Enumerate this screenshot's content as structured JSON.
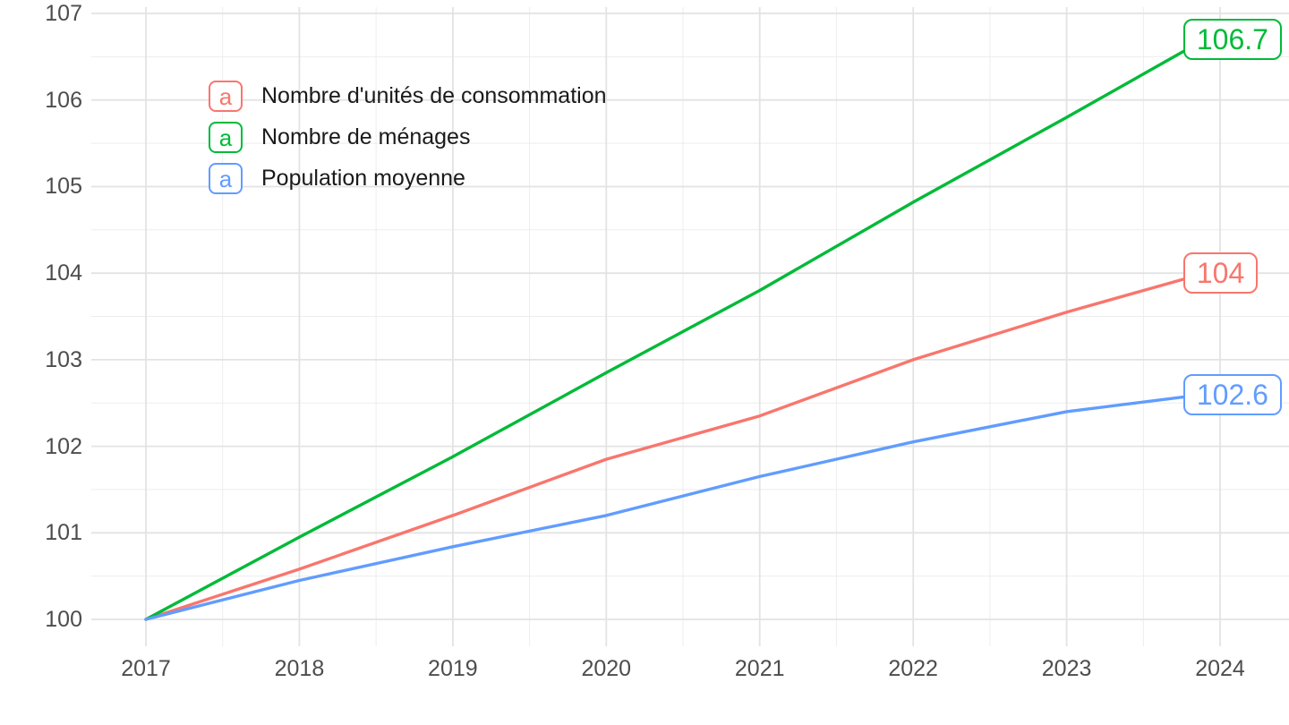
{
  "chart_data": {
    "type": "line",
    "x_label": "",
    "y_label": "",
    "x_ticks": [
      2017,
      2018,
      2019,
      2020,
      2021,
      2022,
      2023,
      2024
    ],
    "y_ticks": [
      100,
      101,
      102,
      103,
      104,
      105,
      106,
      107
    ],
    "xlim": [
      2016.63,
      2024.45
    ],
    "ylim": [
      99.68,
      107.07
    ],
    "grid": "major and minor, light gray on white",
    "legend_position": "inside top-left",
    "series": [
      {
        "name": "Nombre d'unités de consommation",
        "color": "#F8766D",
        "end_label": "104",
        "points": [
          [
            2017,
            100
          ],
          [
            2018,
            100.58
          ],
          [
            2019,
            101.2
          ],
          [
            2020,
            101.85
          ],
          [
            2021,
            102.35
          ],
          [
            2022,
            103.0
          ],
          [
            2023,
            103.55
          ],
          [
            2023.9,
            104
          ]
        ]
      },
      {
        "name": "Nombre de ménages",
        "color": "#00BA38",
        "end_label": "106.7",
        "points": [
          [
            2017,
            100
          ],
          [
            2018,
            100.95
          ],
          [
            2019,
            101.88
          ],
          [
            2020,
            102.85
          ],
          [
            2021,
            103.8
          ],
          [
            2022,
            104.82
          ],
          [
            2023,
            105.8
          ],
          [
            2023.9,
            106.7
          ]
        ]
      },
      {
        "name": "Population moyenne",
        "color": "#619CFF",
        "end_label": "102.6",
        "points": [
          [
            2017,
            100
          ],
          [
            2018,
            100.45
          ],
          [
            2019,
            100.84
          ],
          [
            2020,
            101.2
          ],
          [
            2021,
            101.65
          ],
          [
            2022,
            102.05
          ],
          [
            2023,
            102.4
          ],
          [
            2023.9,
            102.6
          ]
        ]
      }
    ]
  },
  "legend": {
    "key_glyph": "a"
  },
  "colors": {
    "background": "#FFFFFF",
    "grid_major": "#E3E3E3",
    "grid_minor": "#EDEDED",
    "axis_text": "#4D4D4D",
    "legend_text": "#1A1A1A"
  }
}
